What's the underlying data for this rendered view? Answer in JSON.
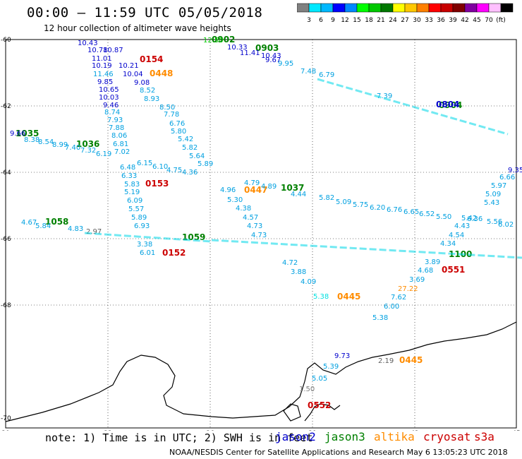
{
  "title": "00:00 – 11:59 UTC 05/05/2018",
  "subtitle": "12 hour collection of altimeter wave heights",
  "scale": {
    "colors": [
      "#808080",
      "#00e8ff",
      "#00b8ff",
      "#0000ff",
      "#0088ff",
      "#00ff00",
      "#00c800",
      "#007800",
      "#ffff00",
      "#ffc800",
      "#ff8000",
      "#ff0000",
      "#c80000",
      "#800000",
      "#8000a0",
      "#ff00ff",
      "#ffc0ff",
      "#000000"
    ],
    "labels": [
      "3",
      "6",
      "9",
      "12",
      "15",
      "18",
      "21",
      "24",
      "27",
      "30",
      "33",
      "36",
      "39",
      "42",
      "45",
      "70",
      "(ft)"
    ]
  },
  "axes": {
    "x_ticks": [
      "30",
      "33",
      "36",
      "39",
      "42",
      "45"
    ],
    "y_ticks": [
      "-60",
      "-62",
      "-64",
      "-66",
      "-68",
      "-70"
    ]
  },
  "note": "note: 1) Time is in UTC; 2) SWH is in feet",
  "legend": [
    {
      "name": "jason2",
      "color": "#0000cc"
    },
    {
      "name": "jason3",
      "color": "#008000"
    },
    {
      "name": "altika",
      "color": "#ff8c00"
    },
    {
      "name": "cryosat",
      "color": "#cc0000"
    },
    {
      "name": "s3a",
      "color": "#cc0000"
    }
  ],
  "credit": "NOAA/NESDIS Center for Satellite Applications and Research   May  6 13:05:23 UTC 2018",
  "time_labels": [
    {
      "t": "0902",
      "c": "#008000"
    },
    {
      "t": "0903",
      "c": "#008000"
    },
    {
      "t": "0904",
      "c": "#008000"
    },
    {
      "t": "1035",
      "c": "#008000"
    },
    {
      "t": "1036",
      "c": "#008000"
    },
    {
      "t": "1037",
      "c": "#008000"
    },
    {
      "t": "1058",
      "c": "#008000"
    },
    {
      "t": "1059",
      "c": "#008000"
    },
    {
      "t": "1100",
      "c": "#008000"
    },
    {
      "t": "0154",
      "c": "#cc0000"
    },
    {
      "t": "0153",
      "c": "#cc0000"
    },
    {
      "t": "0152",
      "c": "#cc0000"
    },
    {
      "t": "0551",
      "c": "#cc0000"
    },
    {
      "t": "0552",
      "c": "#cc0000"
    },
    {
      "t": "0448",
      "c": "#ff8c00"
    },
    {
      "t": "0447",
      "c": "#ff8c00"
    },
    {
      "t": "0445",
      "c": "#ff8c00"
    },
    {
      "t": "0445",
      "c": "#ff8c00"
    },
    {
      "t": "0804",
      "c": "#0000cc"
    }
  ],
  "values": [
    {
      "v": "10.43",
      "c": "#0000cc"
    },
    {
      "v": "10.78",
      "c": "#0000cc"
    },
    {
      "v": "10.87",
      "c": "#0000cc"
    },
    {
      "v": "11.01",
      "c": "#0000cc"
    },
    {
      "v": "10.19",
      "c": "#0000cc"
    },
    {
      "v": "10.21",
      "c": "#0000cc"
    },
    {
      "v": "11.46",
      "c": "#00a0e0"
    },
    {
      "v": "10.04",
      "c": "#0000cc"
    },
    {
      "v": "9.85",
      "c": "#0000cc"
    },
    {
      "v": "9.08",
      "c": "#0000cc"
    },
    {
      "v": "10.65",
      "c": "#0000cc"
    },
    {
      "v": "10.03",
      "c": "#0000cc"
    },
    {
      "v": "9.46",
      "c": "#0000cc"
    },
    {
      "v": "8.52",
      "c": "#00a0e0"
    },
    {
      "v": "8.93",
      "c": "#00a0e0"
    },
    {
      "v": "8.74",
      "c": "#00a0e0"
    },
    {
      "v": "7.93",
      "c": "#00a0e0"
    },
    {
      "v": "7.88",
      "c": "#00a0e0"
    },
    {
      "v": "8.06",
      "c": "#00a0e0"
    },
    {
      "v": "6.81",
      "c": "#00a0e0"
    },
    {
      "v": "7.02",
      "c": "#00a0e0"
    },
    {
      "v": "6.48",
      "c": "#00a0e0"
    },
    {
      "v": "6.33",
      "c": "#00a0e0"
    },
    {
      "v": "5.83",
      "c": "#00a0e0"
    },
    {
      "v": "5.19",
      "c": "#00a0e0"
    },
    {
      "v": "6.09",
      "c": "#00a0e0"
    },
    {
      "v": "5.57",
      "c": "#00a0e0"
    },
    {
      "v": "5.89",
      "c": "#00a0e0"
    },
    {
      "v": "6.93",
      "c": "#00a0e0"
    },
    {
      "v": "3.38",
      "c": "#00a0e0"
    },
    {
      "v": "6.01",
      "c": "#00a0e0"
    },
    {
      "v": "8.50",
      "c": "#00a0e0"
    },
    {
      "v": "7.78",
      "c": "#00a0e0"
    },
    {
      "v": "6.76",
      "c": "#00a0e0"
    },
    {
      "v": "5.80",
      "c": "#00a0e0"
    },
    {
      "v": "5.42",
      "c": "#00a0e0"
    },
    {
      "v": "5.82",
      "c": "#00a0e0"
    },
    {
      "v": "5.64",
      "c": "#00a0e0"
    },
    {
      "v": "5.89",
      "c": "#00a0e0"
    },
    {
      "v": "4.96",
      "c": "#00a0e0"
    },
    {
      "v": "5.30",
      "c": "#00a0e0"
    },
    {
      "v": "4.38",
      "c": "#00a0e0"
    },
    {
      "v": "4.57",
      "c": "#00a0e0"
    },
    {
      "v": "4.73",
      "c": "#00a0e0"
    },
    {
      "v": "4.73",
      "c": "#00a0e0"
    },
    {
      "v": "4.72",
      "c": "#00a0e0"
    },
    {
      "v": "3.88",
      "c": "#00a0e0"
    },
    {
      "v": "4.09",
      "c": "#00a0e0"
    },
    {
      "v": "5.38",
      "c": "#00e0e0"
    },
    {
      "v": "6.00",
      "c": "#00a0e0"
    },
    {
      "v": "5.38",
      "c": "#00a0e0"
    },
    {
      "v": "7.62",
      "c": "#00a0e0"
    },
    {
      "v": "27.22",
      "c": "#ff8c00"
    },
    {
      "v": "3.69",
      "c": "#00a0e0"
    },
    {
      "v": "4.68",
      "c": "#00a0e0"
    },
    {
      "v": "3.89",
      "c": "#00a0e0"
    },
    {
      "v": "4.34",
      "c": "#00a0e0"
    },
    {
      "v": "4.54",
      "c": "#00a0e0"
    },
    {
      "v": "4.43",
      "c": "#00a0e0"
    },
    {
      "v": "5.42",
      "c": "#00a0e0"
    },
    {
      "v": "5.43",
      "c": "#00a0e0"
    },
    {
      "v": "5.09",
      "c": "#00a0e0"
    },
    {
      "v": "5.97",
      "c": "#00a0e0"
    },
    {
      "v": "6.66",
      "c": "#00a0e0"
    },
    {
      "v": "9.35",
      "c": "#0000cc"
    },
    {
      "v": "9.66",
      "c": "#0000cc"
    },
    {
      "v": "8.38",
      "c": "#00a0e0"
    },
    {
      "v": "8.54",
      "c": "#00a0e0"
    },
    {
      "v": "8.99",
      "c": "#00a0e0"
    },
    {
      "v": "7.40",
      "c": "#00a0e0"
    },
    {
      "v": "7.32",
      "c": "#00a0e0"
    },
    {
      "v": "6.19",
      "c": "#00a0e0"
    },
    {
      "v": "6.15",
      "c": "#00a0e0"
    },
    {
      "v": "6.10",
      "c": "#00a0e0"
    },
    {
      "v": "4.75",
      "c": "#00a0e0"
    },
    {
      "v": "4.36",
      "c": "#00a0e0"
    },
    {
      "v": "4.79",
      "c": "#00a0e0"
    },
    {
      "v": "4.89",
      "c": "#00a0e0"
    },
    {
      "v": "4.44",
      "c": "#00a0e0"
    },
    {
      "v": "5.82",
      "c": "#00a0e0"
    },
    {
      "v": "5.09",
      "c": "#00a0e0"
    },
    {
      "v": "5.75",
      "c": "#00a0e0"
    },
    {
      "v": "6.20",
      "c": "#00a0e0"
    },
    {
      "v": "6.76",
      "c": "#00a0e0"
    },
    {
      "v": "6.65",
      "c": "#00a0e0"
    },
    {
      "v": "6.52",
      "c": "#00a0e0"
    },
    {
      "v": "5.50",
      "c": "#00a0e0"
    },
    {
      "v": "6.36",
      "c": "#00a0e0"
    },
    {
      "v": "5.56",
      "c": "#00a0e0"
    },
    {
      "v": "6.02",
      "c": "#00a0e0"
    },
    {
      "v": "4.67",
      "c": "#00a0e0"
    },
    {
      "v": "5.84",
      "c": "#00a0e0"
    },
    {
      "v": "4.83",
      "c": "#00a0e0"
    },
    {
      "v": "2.97",
      "c": "#606060"
    },
    {
      "v": "9.73",
      "c": "#0000cc"
    },
    {
      "v": "5.39",
      "c": "#00a0e0"
    },
    {
      "v": "5.05",
      "c": "#00a0e0"
    },
    {
      "v": "2.19",
      "c": "#606060"
    },
    {
      "v": "1.50",
      "c": "#808080"
    },
    {
      "v": "12.50",
      "c": "#00c800"
    },
    {
      "v": "10.33",
      "c": "#0000cc"
    },
    {
      "v": "11.41",
      "c": "#0000cc"
    },
    {
      "v": "10.43",
      "c": "#0000cc"
    },
    {
      "v": "9.67",
      "c": "#0000cc"
    },
    {
      "v": "9.95",
      "c": "#00a0e0"
    },
    {
      "v": "7.48",
      "c": "#00a0e0"
    },
    {
      "v": "6.79",
      "c": "#00a0e0"
    },
    {
      "v": "7.39",
      "c": "#00a0e0"
    },
    {
      "v": "15.29",
      "c": "#00c800"
    }
  ]
}
